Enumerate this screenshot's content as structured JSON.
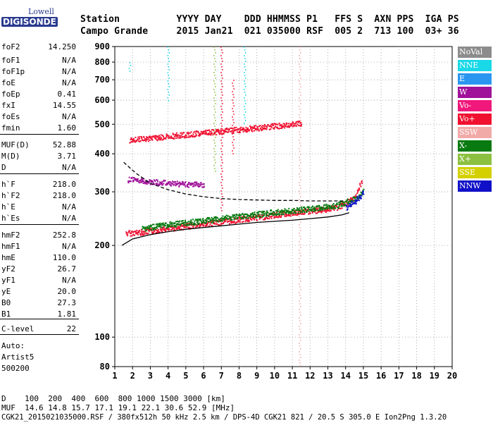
{
  "logo": {
    "top": "Lowell",
    "main": "DIGISONDE"
  },
  "header": {
    "row1": "Station          YYYY DAY    DDD HHMMSS P1   FFS S  AXN PPS  IGA PS",
    "row2": "Campo Grande     2015 Jan21  021 035000 RSF  005 2  713 100  03+ 36"
  },
  "params": [
    {
      "name": "foF2",
      "value": "14.250"
    },
    {
      "name": "foF1",
      "value": "N/A"
    },
    {
      "name": "foF1p",
      "value": "N/A"
    },
    {
      "name": "foE",
      "value": "N/A"
    },
    {
      "name": "foEp",
      "value": "0.41"
    },
    {
      "name": "fxI",
      "value": "14.55"
    },
    {
      "name": "foEs",
      "value": "N/A"
    },
    {
      "name": "fmin",
      "value": "1.60"
    },
    {
      "name": "MUF(D)",
      "value": "52.88"
    },
    {
      "name": "M(D)",
      "value": "3.71"
    },
    {
      "name": "D",
      "value": "N/A"
    },
    {
      "name": "h`F",
      "value": "218.0"
    },
    {
      "name": "h`F2",
      "value": "218.0"
    },
    {
      "name": "h`E",
      "value": "N/A"
    },
    {
      "name": "h`Es",
      "value": "N/A"
    },
    {
      "name": "hmF2",
      "value": "252.8"
    },
    {
      "name": "hmF1",
      "value": "N/A"
    },
    {
      "name": "hmE",
      "value": "110.0"
    },
    {
      "name": "yF2",
      "value": "26.7"
    },
    {
      "name": "yF1",
      "value": "N/A"
    },
    {
      "name": "yE",
      "value": "20.0"
    },
    {
      "name": "B0",
      "value": "27.3"
    },
    {
      "name": "B1",
      "value": "1.81"
    },
    {
      "name": "C-level",
      "value": "22"
    }
  ],
  "auto": {
    "label": "Auto:",
    "name": "Artist5",
    "code": "500200"
  },
  "legend": [
    {
      "label": "NoVal",
      "color": "#8c8c8c"
    },
    {
      "label": "NNE",
      "color": "#19d8e8"
    },
    {
      "label": "E",
      "color": "#2a96f0"
    },
    {
      "label": "W",
      "color": "#a0129a"
    },
    {
      "label": "Vo-",
      "color": "#f0187a"
    },
    {
      "label": "Vo+",
      "color": "#f01030"
    },
    {
      "label": "SSW",
      "color": "#f2aaa8"
    },
    {
      "label": "X-",
      "color": "#087a10"
    },
    {
      "label": "X+",
      "color": "#8cc040"
    },
    {
      "label": "SSE",
      "color": "#d4d000"
    },
    {
      "label": "NNW",
      "color": "#1010c8"
    }
  ],
  "chart_data": {
    "type": "scatter",
    "xlim": [
      1,
      20
    ],
    "ylim": [
      80,
      900
    ],
    "yscale": "log",
    "x_ticks": [
      1,
      2,
      3,
      4,
      5,
      6,
      7,
      8,
      9,
      10,
      11,
      12,
      13,
      14,
      15,
      16,
      17,
      18,
      19,
      20
    ],
    "y_ticks": [
      80,
      100,
      200,
      300,
      400,
      500,
      600,
      700,
      800,
      900
    ],
    "grid": true,
    "series": [
      {
        "name": "Vo+",
        "color": "#f01030",
        "trace": "o-trace F layer",
        "x": [
          1.6,
          2.5,
          3.5,
          4.5,
          5.5,
          6.5,
          7.5,
          8.5,
          9.5,
          10.5,
          11.5,
          12.5,
          13.5,
          14.0,
          14.5,
          14.9
        ],
        "y": [
          220,
          222,
          226,
          230,
          234,
          238,
          242,
          246,
          250,
          255,
          258,
          262,
          268,
          275,
          290,
          330
        ]
      },
      {
        "name": "X-",
        "color": "#087a10",
        "trace": "x-trace F layer",
        "x": [
          2.5,
          4,
          6,
          8,
          10,
          12,
          13.5,
          14.5,
          15.0
        ],
        "y": [
          228,
          235,
          242,
          250,
          258,
          265,
          272,
          285,
          305
        ]
      },
      {
        "name": "W",
        "color": "#a0129a",
        "trace": "oblique echo",
        "x": [
          1.7,
          2.5,
          3.5,
          4.5,
          5.5,
          6.0
        ],
        "y": [
          330,
          327,
          323,
          320,
          318,
          316
        ]
      },
      {
        "name": "Vo+",
        "color": "#f01030",
        "trace": "second-hop F layer",
        "x": [
          1.8,
          3,
          4,
          5,
          6,
          7,
          8,
          9,
          10,
          11,
          11.5
        ],
        "y": [
          445,
          452,
          458,
          464,
          470,
          476,
          482,
          488,
          495,
          502,
          506
        ]
      },
      {
        "name": "NNW",
        "color": "#1010c8",
        "trace": "high-frequency end",
        "x": [
          14.0,
          14.5,
          15.0
        ],
        "y": [
          268,
          280,
          300
        ]
      }
    ],
    "profile_curves": [
      {
        "style": "solid",
        "color": "#000000",
        "x": [
          1.4,
          2.0,
          3,
          4,
          5,
          6,
          7,
          8,
          9,
          10,
          11,
          12,
          13,
          13.8,
          14.2
        ],
        "y": [
          200,
          210,
          217,
          222,
          226,
          229,
          232,
          235,
          238,
          240,
          242,
          245,
          248,
          252,
          256
        ]
      },
      {
        "style": "dashed",
        "color": "#000000",
        "x": [
          1.5,
          2.2,
          3.0,
          4,
          5,
          6,
          7,
          8,
          9,
          10,
          11,
          12,
          13,
          14
        ],
        "y": [
          375,
          345,
          320,
          305,
          295,
          289,
          285,
          283,
          282,
          281,
          281,
          280,
          280,
          280
        ]
      }
    ],
    "vertical_features": [
      {
        "x": 1.8,
        "y_range": [
          740,
          800
        ],
        "color": "#19d8e8"
      },
      {
        "x": 4.0,
        "y_range": [
          600,
          900
        ],
        "color": "#19d8e8"
      },
      {
        "x": 6.6,
        "y_range": [
          350,
          900
        ],
        "color": "#8cc040"
      },
      {
        "x": 7.0,
        "y_range": [
          260,
          900
        ],
        "color": "#f01030"
      },
      {
        "x": 7.6,
        "y_range": [
          400,
          700
        ],
        "color": "#f01030"
      },
      {
        "x": 8.3,
        "y_range": [
          500,
          900
        ],
        "color": "#19d8e8"
      },
      {
        "x": 11.4,
        "y_range": [
          80,
          900
        ],
        "color": "#f2aaa8"
      }
    ]
  },
  "bottom": {
    "d_row": "D    100  200  400  600  800 1000 1500 3000 [km]",
    "muf_row": "MUF  14.6 14.8 15.7 17.1 19.1 22.1 30.6 52.9 [MHz]",
    "footer": "CGK21_2015021035000.RSF / 380fx512h 50 kHz 2.5 km / DPS-4D CGK21 821 / 20.5 S 305.0 E Ion2Png 1.3.20"
  }
}
